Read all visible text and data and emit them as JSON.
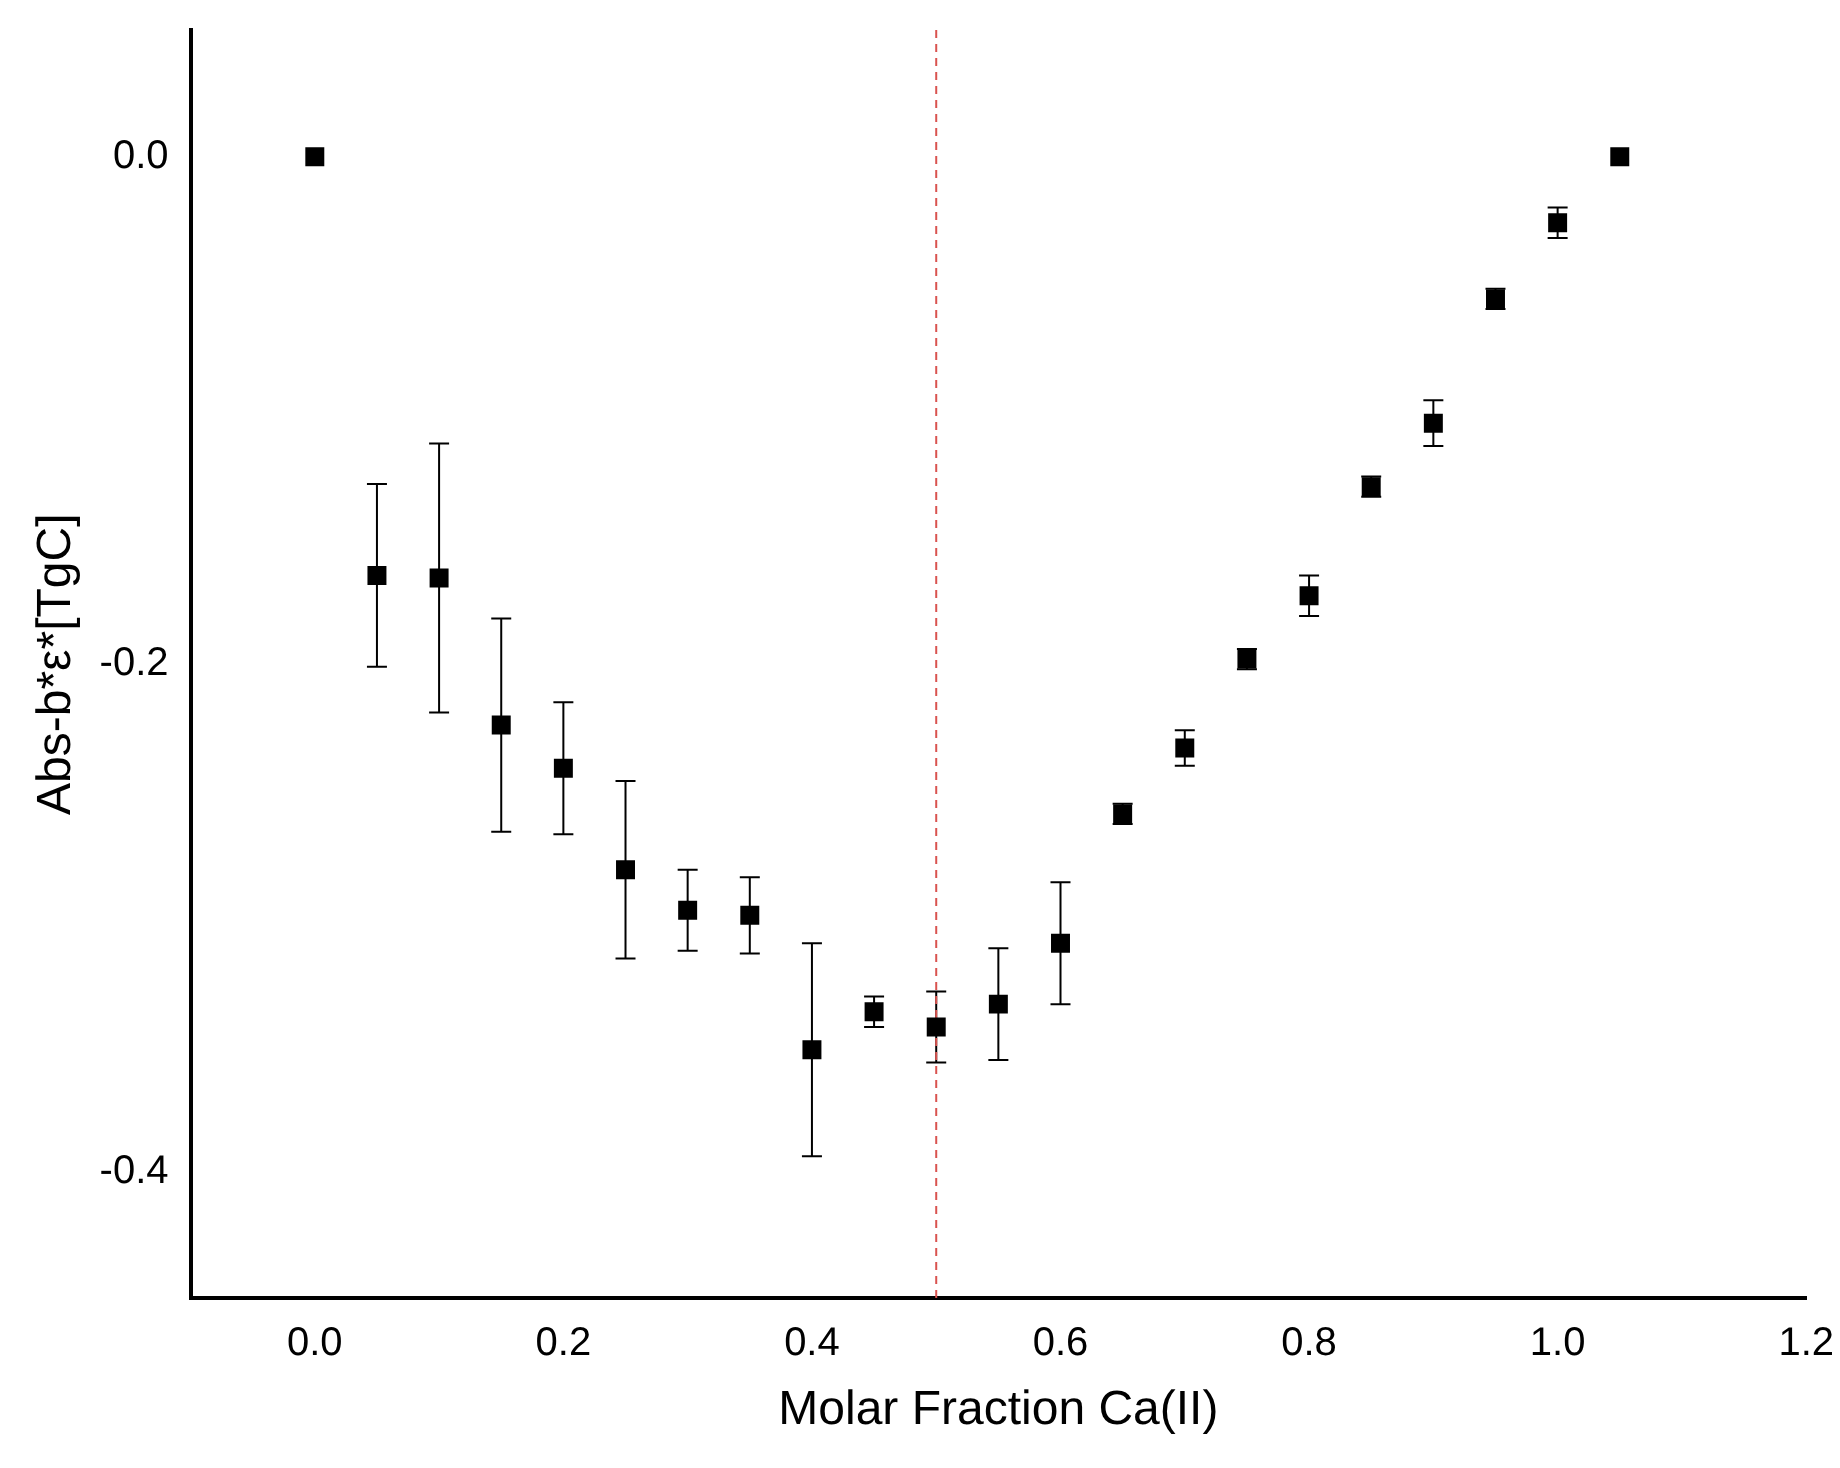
{
  "chart_data": {
    "type": "scatter",
    "xlabel": "Molar Fraction Ca(II)",
    "ylabel": "Abs-b*ε*[TgC]",
    "x": [
      0,
      0.05,
      0.1,
      0.15,
      0.2,
      0.25,
      0.3,
      0.35,
      0.4,
      0.45,
      0.5,
      0.55,
      0.6,
      0.65,
      0.7,
      0.75,
      0.8,
      0.85,
      0.9,
      0.95,
      1.0,
      1.05
    ],
    "series": [
      {
        "color": "#000000",
        "values": [
          0,
          -0.165,
          -0.166,
          -0.224,
          -0.241,
          -0.281,
          -0.297,
          -0.299,
          -0.352,
          -0.337,
          -0.343,
          -0.334,
          -0.31,
          -0.259,
          -0.233,
          -0.198,
          -0.173,
          -0.13,
          -0.105,
          -0.056,
          -0.026,
          0
        ],
        "errors": [
          null,
          0.036,
          0.053,
          0.042,
          0.026,
          0.035,
          0.016,
          0.015,
          0.042,
          0.006,
          0.014,
          0.022,
          0.024,
          0.004,
          0.007,
          0.004,
          0.008,
          0.004,
          0.009,
          0.004,
          0.006,
          null
        ]
      }
    ],
    "marker": "square",
    "grid": false,
    "legend": false,
    "xlim": [
      -0.1,
      1.2
    ],
    "xticks": [
      {
        "value": 0,
        "label": "0.0"
      },
      0.2,
      0.4,
      0.6,
      0.8,
      {
        "value": 1,
        "label": "1.0"
      },
      1.2
    ],
    "ylim": [
      -0.45,
      0.05
    ],
    "yticks": [
      {
        "value": -0.4,
        "label": "-0.4"
      },
      {
        "value": -0.2,
        "label": "-0.2"
      },
      {
        "value": 0,
        "label": "0.0"
      }
    ],
    "ref_lines": [
      {
        "axis": "x",
        "value": 0.5,
        "color": "#d9534f",
        "line_style": "dashed"
      }
    ]
  }
}
